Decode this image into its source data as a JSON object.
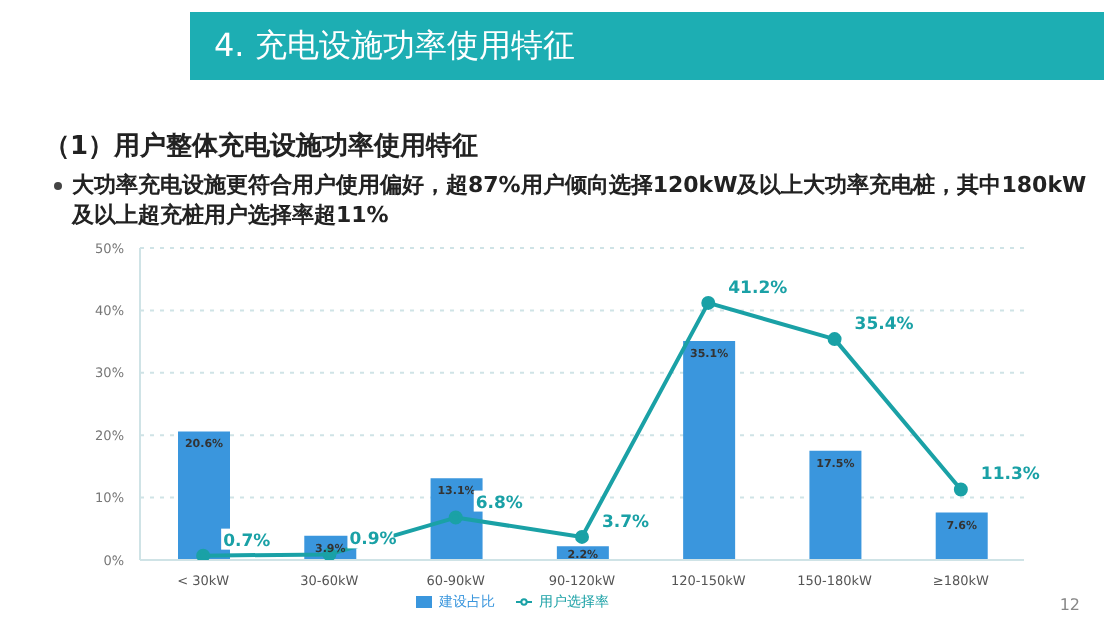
{
  "chart_data": {
    "type": "bar",
    "title": "4. 充电设施功率使用特征",
    "subtitle": "（1）用户整体充电设施功率使用特征",
    "annotations": [
      "大功率充电设施更符合用户使用偏好，超87%用户倾向选择120kW及以上大功率充电桩，其中180kW及以上超充桩用户选择率超11%",
      "12"
    ],
    "categories": [
      "< 30kW",
      "30-60kW",
      "60-90kW",
      "90-120kW",
      "120-150kW",
      "150-180kW",
      "≥180kW"
    ],
    "series": [
      {
        "name": "建设占比",
        "color": "#3a96dd",
        "values": [
          20.6,
          3.9,
          13.1,
          2.2,
          35.1,
          17.5,
          7.6
        ],
        "value_labels": [
          "20.6%",
          "3.9%",
          "13.1%",
          "2.2%",
          "35.1%",
          "17.5%",
          "7.6%"
        ]
      },
      {
        "name": "用户选择率",
        "type": "line",
        "color": "#1aa1a6",
        "values": [
          0.7,
          0.9,
          6.8,
          3.7,
          41.2,
          35.4,
          11.3
        ],
        "value_labels": [
          "0.7%",
          "0.9%",
          "6.8%",
          "3.7%",
          "41.2%",
          "35.4%",
          "11.3%"
        ]
      }
    ],
    "ylim": [
      0,
      50
    ],
    "yticks": [
      {
        "value": 0,
        "label": "0%"
      },
      {
        "value": 10,
        "label": "10%"
      },
      {
        "value": 20,
        "label": "20%"
      },
      {
        "value": 30,
        "label": "30%"
      },
      {
        "value": 40,
        "label": "40%"
      },
      {
        "value": 50,
        "label": "50%"
      }
    ],
    "grid": "y",
    "legend": "bottom",
    "marker": "circle",
    "line_style": "solid"
  }
}
